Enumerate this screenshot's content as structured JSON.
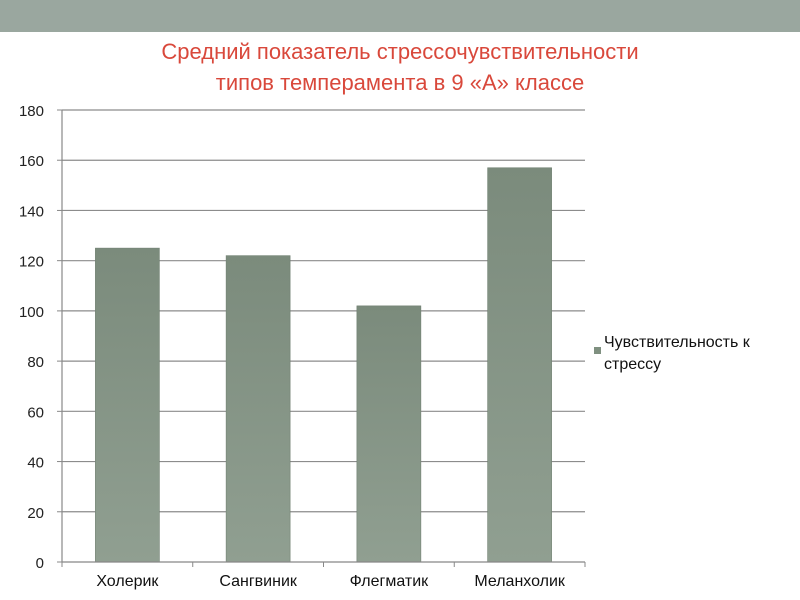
{
  "title_lines": [
    "Средний показатель стрессочувствительности",
    "типов темперамента в  9 «А» классе"
  ],
  "chart_data": {
    "type": "bar",
    "title": "Средний показатель стрессочувствительности типов темперамента в  9 «А» классе",
    "categories": [
      "Холерик",
      "Сангвиник",
      "Флегматик",
      "Меланхолик"
    ],
    "series": [
      {
        "name": "Чувствительность к стрессу",
        "values": [
          125,
          122,
          102,
          157
        ]
      }
    ],
    "ylim": [
      0,
      180
    ],
    "yticks": [
      0,
      20,
      40,
      60,
      80,
      100,
      120,
      140,
      160,
      180
    ],
    "grid": true,
    "legend_position": "right",
    "colors": {
      "bar": "#7f9080",
      "grid": "#8c8c8c",
      "title": "#d9483b"
    }
  },
  "legend": {
    "label_line1": "Чувствительность к",
    "label_line2": "стрессу"
  }
}
